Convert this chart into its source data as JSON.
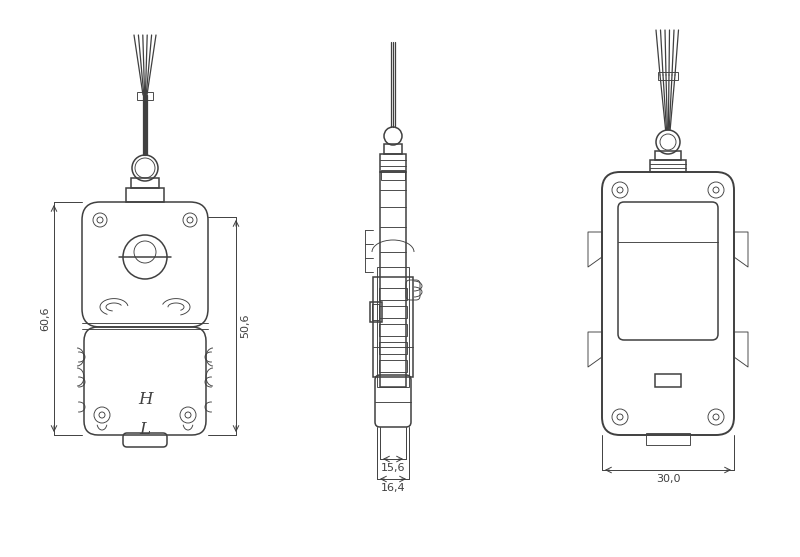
{
  "bg_color": "#ffffff",
  "line_color": "#404040",
  "dim_color": "#404040",
  "lw_main": 1.1,
  "lw_thin": 0.65,
  "lw_thick": 1.4,
  "dim_606": "60,6",
  "dim_506": "50,6",
  "dim_156": "15,6",
  "dim_164": "16,4",
  "dim_300": "30,0"
}
